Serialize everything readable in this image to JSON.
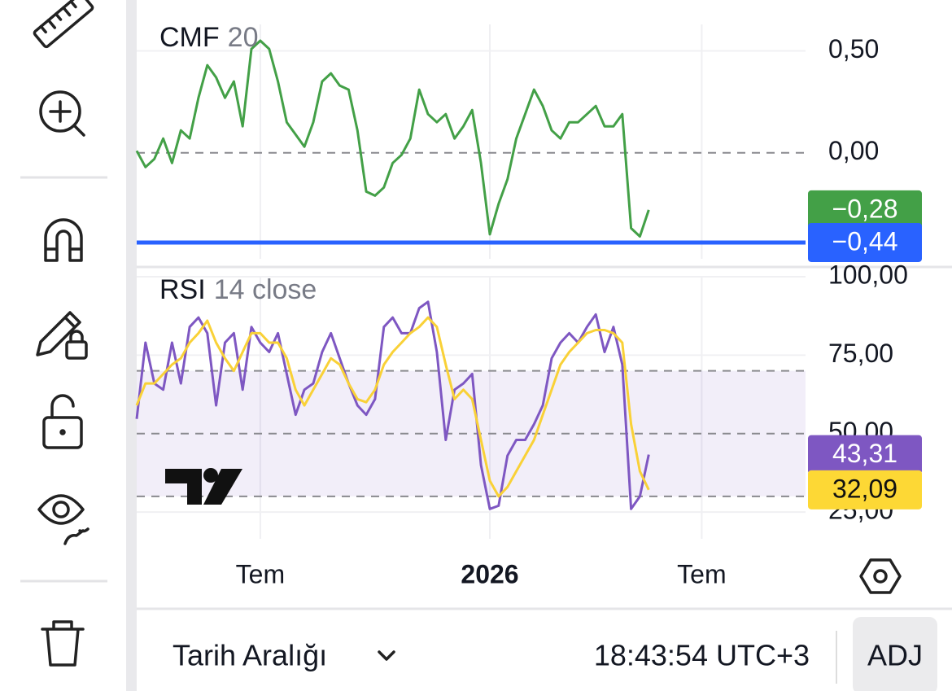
{
  "chart_data": [
    {
      "type": "line",
      "title": "CMF",
      "subtitle": "20",
      "ylim": [
        -0.52,
        0.63
      ],
      "yticks": [
        {
          "value": 0.5,
          "label": "0,50"
        },
        {
          "value": 0,
          "label": "0,00"
        }
      ],
      "levels": [
        0
      ],
      "color": "#43a047",
      "values": [
        0.01,
        -0.07,
        -0.03,
        0.07,
        -0.05,
        0.11,
        0.07,
        0.27,
        0.43,
        0.37,
        0.27,
        0.35,
        0.13,
        0.51,
        0.55,
        0.51,
        0.35,
        0.15,
        0.09,
        0.03,
        0.15,
        0.35,
        0.39,
        0.33,
        0.31,
        0.11,
        -0.19,
        -0.21,
        -0.17,
        -0.05,
        -0.01,
        0.07,
        0.31,
        0.19,
        0.15,
        0.19,
        0.07,
        0.13,
        0.21,
        -0.05,
        -0.4,
        -0.25,
        -0.13,
        0.07,
        0.19,
        0.31,
        0.23,
        0.11,
        0.07,
        0.15,
        0.15,
        0.19,
        0.23,
        0.13,
        0.13,
        0.19,
        -0.37,
        -0.41,
        -0.28,
        null,
        null,
        null,
        null,
        null,
        null,
        null,
        null,
        null,
        null,
        null,
        null,
        null,
        null,
        null,
        null,
        null
      ],
      "badges": [
        {
          "value": -0.28,
          "label": "−0,28",
          "color": "#43a047",
          "text_color": "#fff"
        }
      ],
      "hline": {
        "value": -0.44,
        "label": "−0,44",
        "color": "#2962ff",
        "text_color": "#fff"
      }
    },
    {
      "type": "line",
      "title": "RSI",
      "subtitle": "14 close",
      "ylim": [
        17,
        100
      ],
      "yticks": [
        {
          "value": 100,
          "label": "100,00"
        },
        {
          "value": 75,
          "label": "75,00"
        },
        {
          "value": 50,
          "label": "50,00"
        },
        {
          "value": 25,
          "label": "25,00"
        }
      ],
      "levels": [
        70,
        50,
        30
      ],
      "band": [
        30,
        70
      ],
      "series": [
        {
          "color": "#7e57c2",
          "values": [
            54.7,
            79,
            66,
            64,
            79,
            66,
            84,
            87,
            82,
            59,
            79,
            82,
            64,
            84,
            79,
            76,
            82,
            69,
            56,
            64,
            66,
            76,
            82,
            74,
            66,
            59,
            56,
            61,
            84,
            87,
            82,
            82,
            90,
            92,
            76,
            48,
            64,
            66,
            69,
            40,
            26,
            27,
            43,
            48,
            48,
            53,
            59,
            74,
            79,
            82,
            79,
            84,
            88,
            76,
            84,
            72,
            26,
            30,
            43.31,
            null,
            null,
            null,
            null,
            null,
            null,
            null,
            null,
            null,
            null,
            null,
            null,
            null,
            null,
            null,
            null,
            null
          ]
        },
        {
          "color": "#f9d137",
          "values": [
            59,
            66,
            66,
            69,
            72,
            74,
            79,
            82,
            86,
            79,
            74,
            70,
            76,
            82,
            82,
            79,
            79,
            74,
            64,
            59,
            64,
            69,
            74,
            72,
            66,
            61,
            60,
            64,
            72,
            76,
            79,
            82,
            84,
            87,
            84,
            72,
            61,
            64,
            61,
            48,
            35,
            30,
            33,
            38,
            43,
            48,
            56,
            64,
            72,
            76,
            79,
            82,
            83,
            83,
            82,
            79,
            53,
            38,
            32.09,
            null,
            null,
            null,
            null,
            null,
            null,
            null,
            null,
            null,
            null,
            null,
            null,
            null,
            null,
            null,
            null,
            null
          ]
        }
      ],
      "badges": [
        {
          "value": 43.31,
          "label": "43,31",
          "color": "#7e57c2",
          "text_color": "#fff"
        },
        {
          "value": 32.09,
          "label": "32,09",
          "color": "#fdd835",
          "text_color": "#111"
        }
      ]
    }
  ],
  "time_axis": {
    "categories": [
      null,
      null,
      null,
      null,
      null,
      null,
      null,
      null,
      null,
      null,
      null,
      null,
      null,
      null,
      "Tem",
      null,
      null,
      null,
      null,
      null,
      null,
      null,
      null,
      null,
      null,
      null,
      null,
      null,
      null,
      null,
      null,
      null,
      null,
      null,
      null,
      null,
      null,
      null,
      null,
      null,
      "2026",
      null,
      null,
      null,
      null,
      null,
      null,
      null,
      null,
      null,
      null,
      null,
      null,
      null,
      null,
      null,
      null,
      null,
      null,
      null,
      null,
      null,
      null,
      null,
      "Tem",
      null,
      null,
      null,
      null,
      null,
      null,
      null,
      null,
      null,
      null,
      null
    ]
  },
  "footer": {
    "range_button": "Tarih Aralığı",
    "clock": "18:43:54 UTC+3",
    "adj_button": "ADJ"
  }
}
